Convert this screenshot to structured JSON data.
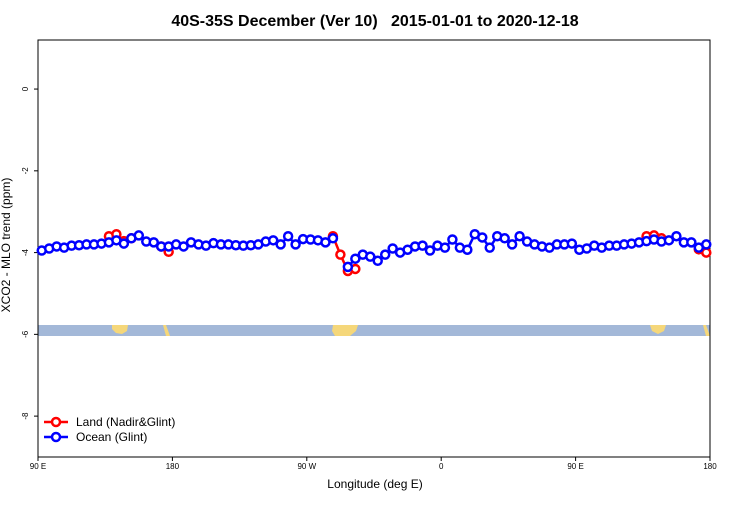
{
  "chart_data": {
    "type": "line",
    "title": "40S-35S December (Ver 10)   2015-01-01 to 2020-12-18",
    "xlabel": "Longitude (deg E)",
    "ylabel": "XCO2 - MLO trend (ppm)",
    "xlim": [
      90,
      540
    ],
    "ylim": [
      -9,
      1.2
    ],
    "xticks": [
      {
        "value": 90,
        "label": "90 E"
      },
      {
        "value": 180,
        "label": "180"
      },
      {
        "value": 270,
        "label": "90 W"
      },
      {
        "value": 360,
        "label": "0"
      },
      {
        "value": 450,
        "label": "90 E"
      },
      {
        "value": 540,
        "label": "180"
      }
    ],
    "yticks": [
      0,
      -2,
      -4,
      -6,
      -8
    ],
    "legend": "bottom-left",
    "series": [
      {
        "name": "Land (Nadir&Glint)",
        "color": "#ff0000",
        "x": [
          137.5,
          142.5,
          147.5,
          152.5,
          null,
          172.5,
          177.5,
          null,
          287.5,
          292.5,
          297.5,
          302.5,
          null,
          497.5,
          502.5,
          507.5,
          null,
          532.5,
          537.5
        ],
        "values": [
          -3.6,
          -3.55,
          -3.72,
          -3.65,
          null,
          -3.85,
          -3.98,
          null,
          -3.6,
          -4.05,
          -4.45,
          -4.4,
          null,
          -3.6,
          -3.58,
          -3.65,
          null,
          -3.92,
          -4.0
        ]
      },
      {
        "name": "Ocean (Glint)",
        "color": "#0000ff",
        "x": [
          92.5,
          97.5,
          102.5,
          107.5,
          112.5,
          117.5,
          122.5,
          127.5,
          132.5,
          137.5,
          142.5,
          147.5,
          152.5,
          157.5,
          162.5,
          167.5,
          172.5,
          177.5,
          182.5,
          187.5,
          192.5,
          197.5,
          202.5,
          207.5,
          212.5,
          217.5,
          222.5,
          227.5,
          232.5,
          237.5,
          242.5,
          247.5,
          252.5,
          257.5,
          262.5,
          267.5,
          272.5,
          277.5,
          282.5,
          287.5,
          null,
          297.5,
          302.5,
          307.5,
          312.5,
          317.5,
          322.5,
          327.5,
          332.5,
          337.5,
          342.5,
          347.5,
          352.5,
          357.5,
          362.5,
          367.5,
          372.5,
          377.5,
          382.5,
          387.5,
          392.5,
          397.5,
          402.5,
          407.5,
          412.5,
          417.5,
          422.5,
          427.5,
          432.5,
          437.5,
          442.5,
          447.5,
          452.5,
          457.5,
          462.5,
          467.5,
          472.5,
          477.5,
          482.5,
          487.5,
          492.5,
          497.5,
          502.5,
          507.5,
          512.5,
          517.5,
          522.5,
          527.5,
          532.5,
          537.5
        ],
        "values": [
          -3.95,
          -3.9,
          -3.85,
          -3.88,
          -3.83,
          -3.82,
          -3.8,
          -3.8,
          -3.78,
          -3.75,
          -3.7,
          -3.78,
          -3.65,
          -3.58,
          -3.73,
          -3.75,
          -3.85,
          -3.85,
          -3.8,
          -3.85,
          -3.75,
          -3.8,
          -3.83,
          -3.77,
          -3.8,
          -3.8,
          -3.82,
          -3.83,
          -3.82,
          -3.8,
          -3.73,
          -3.7,
          -3.8,
          -3.6,
          -3.8,
          -3.67,
          -3.68,
          -3.7,
          -3.75,
          -3.65,
          null,
          -4.35,
          -4.15,
          -4.05,
          -4.1,
          -4.2,
          -4.05,
          -3.9,
          -4.0,
          -3.93,
          -3.85,
          -3.83,
          -3.95,
          -3.83,
          -3.88,
          -3.68,
          -3.88,
          -3.93,
          -3.55,
          -3.63,
          -3.88,
          -3.6,
          -3.65,
          -3.8,
          -3.6,
          -3.73,
          -3.8,
          -3.85,
          -3.88,
          -3.8,
          -3.8,
          -3.78,
          -3.93,
          -3.9,
          -3.83,
          -3.88,
          -3.83,
          -3.83,
          -3.8,
          -3.78,
          -3.75,
          -3.72,
          -3.68,
          -3.73,
          -3.7,
          -3.6,
          -3.75,
          -3.75,
          -3.88,
          -3.8
        ]
      }
    ]
  }
}
